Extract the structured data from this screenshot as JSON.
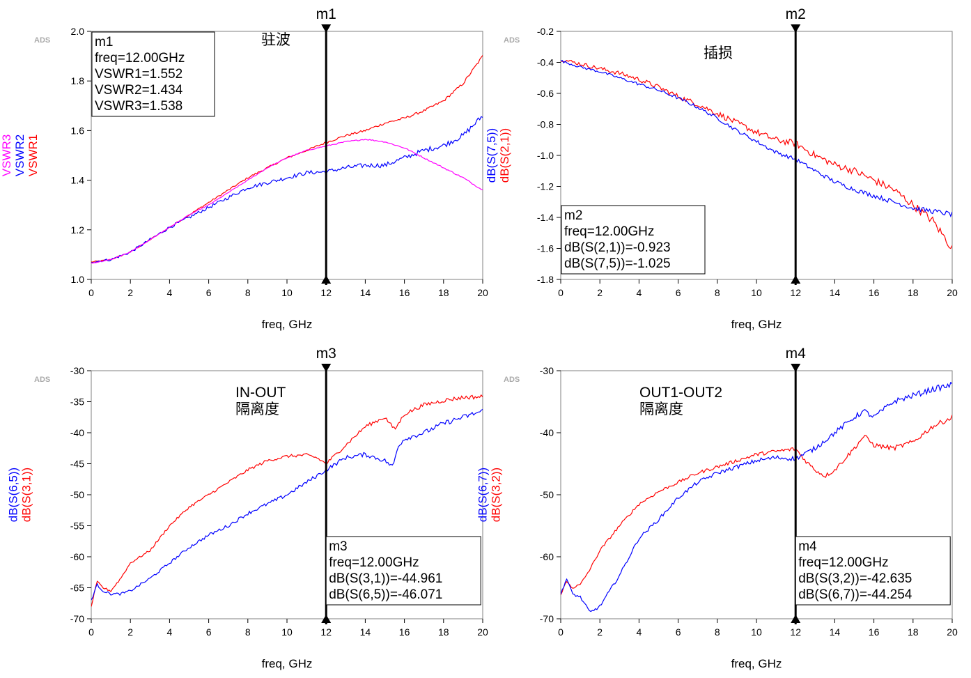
{
  "chart_data": [
    {
      "type": "line",
      "ads_tag": "ADS",
      "annotation": "驻波",
      "xlabel": "freq, GHz",
      "xlim": [
        0,
        20
      ],
      "x_ticks": [
        "0",
        "2",
        "4",
        "6",
        "8",
        "10",
        "12",
        "14",
        "16",
        "18",
        "20"
      ],
      "ylim": [
        1.0,
        2.0
      ],
      "y_ticks": [
        "1.0",
        "1.2",
        "1.4",
        "1.6",
        "1.8",
        "2.0"
      ],
      "left_labels": [
        {
          "text": "VSWR3",
          "color": "#ff00ff"
        },
        {
          "text": "VSWR2",
          "color": "#0000ff"
        },
        {
          "text": "VSWR1",
          "color": "#ff0000"
        }
      ],
      "right_labels": [
        {
          "text": "dB(S(7,5))",
          "color": "#0000ff"
        },
        {
          "text": "dB(S(2,1))",
          "color": "#ff0000"
        }
      ],
      "marker": {
        "name": "m1",
        "x": 12,
        "box_lines": [
          "m1",
          "freq=12.00GHz",
          "VSWR1=1.552",
          "VSWR2=1.434",
          "VSWR3=1.538"
        ],
        "box_pos": "top-left"
      },
      "series": [
        {
          "color": "#ff0000",
          "noise": 0.004,
          "x": [
            0,
            1,
            2,
            3,
            4,
            5,
            6,
            7,
            8,
            9,
            10,
            11,
            12,
            13,
            14,
            15,
            16,
            17,
            18,
            19,
            20
          ],
          "y": [
            1.07,
            1.08,
            1.11,
            1.16,
            1.21,
            1.26,
            1.31,
            1.36,
            1.41,
            1.45,
            1.49,
            1.52,
            1.552,
            1.58,
            1.6,
            1.63,
            1.65,
            1.68,
            1.72,
            1.79,
            1.9
          ]
        },
        {
          "color": "#0000ff",
          "noise": 0.008,
          "x": [
            0,
            1,
            2,
            3,
            4,
            5,
            6,
            7,
            8,
            9,
            10,
            11,
            12,
            13,
            14,
            15,
            16,
            17,
            18,
            19,
            20
          ],
          "y": [
            1.07,
            1.08,
            1.11,
            1.16,
            1.21,
            1.25,
            1.29,
            1.33,
            1.37,
            1.39,
            1.41,
            1.43,
            1.434,
            1.45,
            1.46,
            1.46,
            1.49,
            1.52,
            1.54,
            1.58,
            1.66
          ]
        },
        {
          "color": "#ff00ff",
          "noise": 0.002,
          "x": [
            0,
            1,
            2,
            3,
            4,
            5,
            6,
            7,
            8,
            9,
            10,
            11,
            12,
            13,
            14,
            15,
            16,
            17,
            18,
            19,
            20
          ],
          "y": [
            1.065,
            1.08,
            1.11,
            1.16,
            1.21,
            1.26,
            1.3,
            1.35,
            1.4,
            1.45,
            1.49,
            1.52,
            1.538,
            1.555,
            1.565,
            1.555,
            1.53,
            1.49,
            1.45,
            1.41,
            1.36
          ]
        }
      ]
    },
    {
      "type": "line",
      "ads_tag": "ADS",
      "annotation": "插损",
      "xlabel": "freq, GHz",
      "xlim": [
        0,
        20
      ],
      "x_ticks": [
        "0",
        "2",
        "4",
        "6",
        "8",
        "10",
        "12",
        "14",
        "16",
        "18",
        "20"
      ],
      "ylim": [
        -1.8,
        -0.2
      ],
      "y_ticks": [
        "-1.8",
        "-1.6",
        "-1.4",
        "-1.2",
        "-1.0",
        "-0.8",
        "-0.6",
        "-0.4",
        "-0.2"
      ],
      "left_labels": [],
      "right_labels": [],
      "marker": {
        "name": "m2",
        "x": 12,
        "box_lines": [
          "m2",
          "freq=12.00GHz",
          "dB(S(2,1))=-0.923",
          "dB(S(7,5))=-1.025"
        ],
        "box_pos": "bottom-left"
      },
      "series": [
        {
          "color": "#ff0000",
          "noise": 0.02,
          "x": [
            0,
            1,
            2,
            3,
            4,
            5,
            6,
            7,
            8,
            9,
            10,
            11,
            12,
            13,
            14,
            15,
            16,
            17,
            18,
            19,
            20
          ],
          "y": [
            -0.38,
            -0.41,
            -0.44,
            -0.47,
            -0.51,
            -0.56,
            -0.62,
            -0.67,
            -0.73,
            -0.79,
            -0.85,
            -0.9,
            -0.923,
            -1.0,
            -1.06,
            -1.1,
            -1.16,
            -1.22,
            -1.32,
            -1.42,
            -1.6
          ]
        },
        {
          "color": "#0000ff",
          "noise": 0.012,
          "x": [
            0,
            1,
            2,
            3,
            4,
            5,
            6,
            7,
            8,
            9,
            10,
            11,
            12,
            13,
            14,
            15,
            16,
            17,
            18,
            19,
            20
          ],
          "y": [
            -0.39,
            -0.43,
            -0.46,
            -0.5,
            -0.54,
            -0.58,
            -0.63,
            -0.69,
            -0.76,
            -0.84,
            -0.91,
            -0.98,
            -1.025,
            -1.1,
            -1.17,
            -1.22,
            -1.26,
            -1.3,
            -1.34,
            -1.36,
            -1.38
          ]
        }
      ]
    },
    {
      "type": "line",
      "ads_tag": "ADS",
      "annotation": "IN-OUT",
      "annotation2": "隔离度",
      "xlabel": "freq, GHz",
      "xlim": [
        0,
        20
      ],
      "x_ticks": [
        "0",
        "2",
        "4",
        "6",
        "8",
        "10",
        "12",
        "14",
        "16",
        "18",
        "20"
      ],
      "ylim": [
        -70,
        -30
      ],
      "y_ticks": [
        "-70",
        "-65",
        "-60",
        "-55",
        "-50",
        "-45",
        "-40",
        "-35",
        "-30"
      ],
      "left_labels": [
        {
          "text": "dB(S(6,5))",
          "color": "#0000ff"
        },
        {
          "text": "dB(S(3,1))",
          "color": "#ff0000"
        }
      ],
      "right_labels": [],
      "marker": {
        "name": "m3",
        "x": 12,
        "box_lines": [
          "m3",
          "freq=12.00GHz",
          "dB(S(3,1))=-44.961",
          "dB(S(6,5))=-46.071"
        ],
        "box_pos": "bottom-right"
      },
      "series": [
        {
          "color": "#ff0000",
          "noise": 0.25,
          "x": [
            0,
            0.3,
            0.6,
            1,
            1.5,
            2,
            3,
            4,
            5,
            6,
            7,
            8,
            9,
            10,
            11,
            11.5,
            12,
            13,
            14,
            15,
            15.5,
            16,
            17,
            18,
            19,
            20
          ],
          "y": [
            -68,
            -64,
            -65,
            -65.5,
            -63.5,
            -61,
            -59,
            -55,
            -52,
            -50,
            -48,
            -46,
            -44.5,
            -43.8,
            -43.6,
            -44,
            -45,
            -42,
            -39,
            -37.5,
            -39.5,
            -37,
            -35.5,
            -34.8,
            -34.3,
            -34.2
          ]
        },
        {
          "color": "#0000ff",
          "noise": 0.3,
          "x": [
            0,
            0.3,
            0.6,
            1,
            1.5,
            2,
            3,
            4,
            5,
            6,
            7,
            8,
            9,
            10,
            11,
            12,
            13,
            14,
            15,
            15.4,
            15.7,
            16,
            17,
            18,
            19,
            20
          ],
          "y": [
            -67,
            -64.5,
            -65.5,
            -66,
            -66,
            -65.5,
            -63.5,
            -61,
            -58.5,
            -56.5,
            -55,
            -53,
            -51.5,
            -50,
            -48,
            -46,
            -44,
            -43.5,
            -44.5,
            -45.5,
            -42,
            -41,
            -40,
            -38.5,
            -37.5,
            -36.5
          ]
        }
      ]
    },
    {
      "type": "line",
      "ads_tag": "ADS",
      "annotation": "OUT1-OUT2",
      "annotation2": "隔离度",
      "xlabel": "freq, GHz",
      "xlim": [
        0,
        20
      ],
      "x_ticks": [
        "0",
        "2",
        "4",
        "6",
        "8",
        "10",
        "12",
        "14",
        "16",
        "18",
        "20"
      ],
      "ylim": [
        -70,
        -30
      ],
      "y_ticks": [
        "-70",
        "-60",
        "-50",
        "-40",
        "-30"
      ],
      "left_labels": [
        {
          "text": "dB(S(6,7))",
          "color": "#0000ff"
        },
        {
          "text": "dB(S(3,2))",
          "color": "#ff0000"
        }
      ],
      "right_labels": [],
      "marker": {
        "name": "m4",
        "x": 12,
        "box_lines": [
          "m4",
          "freq=12.00GHz",
          "dB(S(3,2))=-42.635",
          "dB(S(6,7))=-44.254"
        ],
        "box_pos": "bottom-right"
      },
      "series": [
        {
          "color": "#ff0000",
          "noise": 0.3,
          "x": [
            0,
            0.3,
            0.6,
            1,
            1.5,
            2,
            3,
            4,
            5,
            6,
            7,
            8,
            9,
            10,
            11,
            12,
            12.5,
            13,
            13.5,
            14,
            15,
            15.5,
            16,
            17,
            18,
            19,
            20
          ],
          "y": [
            -66,
            -64,
            -65,
            -64.5,
            -62,
            -59,
            -55,
            -51.5,
            -49.5,
            -48,
            -46.5,
            -45.5,
            -44.5,
            -43.5,
            -43,
            -42.6,
            -44.5,
            -46,
            -47,
            -46,
            -42.5,
            -40.5,
            -42,
            -42.5,
            -41.5,
            -39,
            -37.5
          ]
        },
        {
          "color": "#0000ff",
          "noise": 0.35,
          "x": [
            0,
            0.3,
            0.6,
            1,
            1.5,
            2,
            3,
            4,
            5,
            6,
            7,
            8,
            9,
            10,
            11,
            12,
            13,
            14,
            15,
            15.5,
            16,
            17,
            18,
            19,
            20
          ],
          "y": [
            -66,
            -63.5,
            -66,
            -66.5,
            -69,
            -68,
            -63,
            -57,
            -54,
            -50.5,
            -48,
            -46.5,
            -45.5,
            -44.5,
            -44,
            -44.2,
            -42.5,
            -40,
            -37.5,
            -36.5,
            -37.5,
            -35,
            -34,
            -33,
            -32.3
          ]
        }
      ]
    }
  ]
}
